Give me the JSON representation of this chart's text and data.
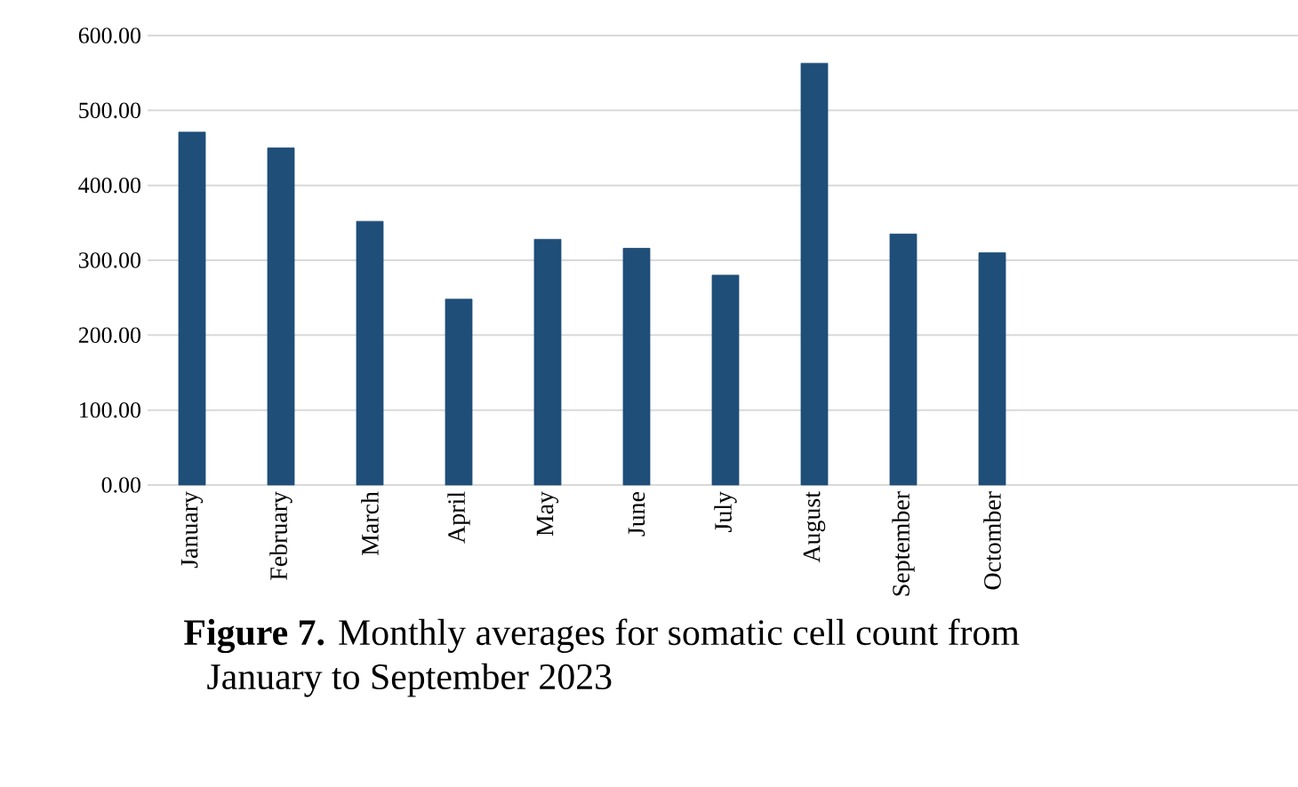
{
  "chart_data": {
    "type": "bar",
    "title": "**Figure 7.** Monthly averages for somatic cell count from January to September 2023",
    "categories": [
      "January",
      "February",
      "March",
      "April",
      "May",
      "June",
      "July",
      "August",
      "September",
      "Octomber"
    ],
    "values": [
      471,
      450,
      352,
      248,
      328,
      316,
      280,
      563,
      335,
      310
    ],
    "color": "#1f4e79",
    "ylim": [
      0,
      600
    ],
    "yticks": [
      {
        "value": 0,
        "label": "0.00"
      },
      {
        "value": 100,
        "label": "100.00"
      },
      {
        "value": 200,
        "label": "200.00"
      },
      {
        "value": 300,
        "label": "300.00"
      },
      {
        "value": 400,
        "label": "400.00"
      },
      {
        "value": 500,
        "label": "500.00"
      },
      {
        "value": 600,
        "label": "600.00"
      }
    ],
    "grid": "y"
  }
}
